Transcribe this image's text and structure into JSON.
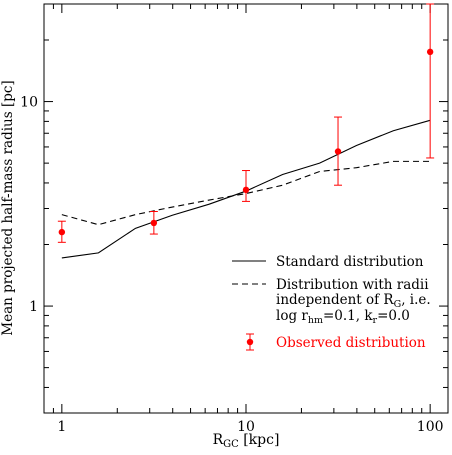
{
  "chart_data": {
    "type": "line",
    "xscale": "log",
    "yscale": "log",
    "xlim": [
      0.8,
      125
    ],
    "ylim": [
      0.3,
      30
    ],
    "xticks": [
      1,
      10,
      100
    ],
    "yticks": [
      1,
      10
    ],
    "xlabel": {
      "main": "R",
      "sub": "GC",
      "rest": " [kpc]"
    },
    "ylabel": "Mean projected half-mass radius [pc]",
    "legend_position": "lower-right",
    "series": [
      {
        "name": "Standard distribution",
        "style": "solid",
        "color": "#000000",
        "x": [
          1,
          1.58,
          2.51,
          3.98,
          6.31,
          10,
          15.8,
          25.1,
          39.8,
          63.1,
          100
        ],
        "y": [
          1.72,
          1.82,
          2.4,
          2.78,
          3.15,
          3.65,
          4.4,
          5.0,
          6.1,
          7.2,
          8.1
        ]
      },
      {
        "name_lines": [
          "Distribution with radii",
          "independent of R",
          "log r",
          "=0.1, k",
          "=0.0"
        ],
        "name_parts": {
          "line2_sub": "G",
          "line2_tail": ", i.e.",
          "line3_sub1": "hm",
          "line3_sub2": "r"
        },
        "style": "dashed",
        "color": "#000000",
        "x": [
          1,
          1.58,
          2.51,
          3.98,
          6.31,
          10,
          15.8,
          25.1,
          39.8,
          63.1,
          100
        ],
        "y": [
          2.8,
          2.5,
          2.8,
          3.05,
          3.3,
          3.55,
          3.9,
          4.55,
          4.75,
          5.1,
          5.1
        ]
      },
      {
        "name": "Observed distribution",
        "style": "points-errorbars",
        "color": "#ff0000",
        "x": [
          1,
          3.16,
          10,
          31.6,
          100
        ],
        "y": [
          2.3,
          2.55,
          3.7,
          5.7,
          17.5
        ],
        "err_low": [
          2.05,
          2.25,
          3.25,
          3.9,
          5.3
        ],
        "err_high": [
          2.6,
          2.9,
          4.6,
          8.4,
          30
        ]
      }
    ]
  }
}
